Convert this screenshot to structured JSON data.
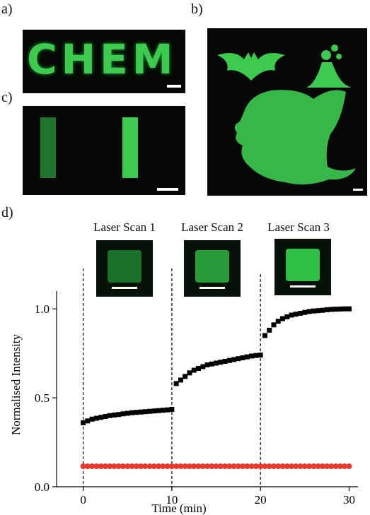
{
  "figure": {
    "panel_labels": [
      "a)",
      "b)",
      "c)",
      "d)"
    ],
    "panel_a_text": "CHEM",
    "panel_c_text": [
      "I",
      "I"
    ],
    "scan_labels": [
      "Laser Scan 1",
      "Laser Scan 2",
      "Laser Scan 3"
    ],
    "scan_intensity": [
      0.45,
      0.75,
      1.0
    ],
    "glow_color": "#3ccb4f",
    "black_series_color": "#000000",
    "red_series_color": "#e8392e"
  },
  "chart_data": {
    "type": "scatter",
    "xlabel": "Time (min)",
    "ylabel": "Normalised Intensity",
    "xlim": [
      -3,
      31
    ],
    "ylim": [
      0,
      1.1
    ],
    "xticks": [
      0,
      10,
      20,
      30
    ],
    "yticks": [
      0.0,
      0.5,
      1.0
    ],
    "ytick_labels": [
      "0.0",
      "0.5",
      "1.0"
    ],
    "vlines": [
      0,
      10,
      20
    ],
    "grid": false,
    "series": [
      {
        "color": "#000000",
        "marker": "square",
        "x": [
          0,
          0.5,
          1,
          1.5,
          2,
          2.5,
          3,
          3.5,
          4,
          4.5,
          5,
          5.5,
          6,
          6.5,
          7,
          7.5,
          8,
          8.5,
          9,
          9.5,
          10,
          10.5,
          11,
          11.5,
          12,
          12.5,
          13,
          13.5,
          14,
          14.5,
          15,
          15.5,
          16,
          16.5,
          17,
          17.5,
          18,
          18.5,
          19,
          19.5,
          20,
          20.5,
          21,
          21.5,
          22,
          22.5,
          23,
          23.5,
          24,
          24.5,
          25,
          25.5,
          26,
          26.5,
          27,
          27.5,
          28,
          28.5,
          29,
          29.5,
          30
        ],
        "y": [
          0.36,
          0.37,
          0.38,
          0.385,
          0.39,
          0.395,
          0.4,
          0.403,
          0.406,
          0.41,
          0.413,
          0.416,
          0.418,
          0.42,
          0.422,
          0.424,
          0.426,
          0.428,
          0.43,
          0.432,
          0.435,
          0.58,
          0.6,
          0.62,
          0.64,
          0.655,
          0.665,
          0.675,
          0.685,
          0.69,
          0.695,
          0.7,
          0.705,
          0.71,
          0.715,
          0.72,
          0.725,
          0.73,
          0.735,
          0.738,
          0.74,
          0.85,
          0.88,
          0.91,
          0.93,
          0.945,
          0.955,
          0.965,
          0.97,
          0.975,
          0.98,
          0.985,
          0.988,
          0.99,
          0.992,
          0.995,
          0.997,
          0.998,
          0.999,
          1.0,
          1.0
        ]
      },
      {
        "color": "#e8392e",
        "marker": "circle",
        "x": [
          0,
          0.5,
          1,
          1.5,
          2,
          2.5,
          3,
          3.5,
          4,
          4.5,
          5,
          5.5,
          6,
          6.5,
          7,
          7.5,
          8,
          8.5,
          9,
          9.5,
          10,
          10.5,
          11,
          11.5,
          12,
          12.5,
          13,
          13.5,
          14,
          14.5,
          15,
          15.5,
          16,
          16.5,
          17,
          17.5,
          18,
          18.5,
          19,
          19.5,
          20,
          20.5,
          21,
          21.5,
          22,
          22.5,
          23,
          23.5,
          24,
          24.5,
          25,
          25.5,
          26,
          26.5,
          27,
          27.5,
          28,
          28.5,
          29,
          29.5,
          30
        ],
        "y": [
          0.115,
          0.115,
          0.115,
          0.115,
          0.115,
          0.115,
          0.115,
          0.115,
          0.115,
          0.115,
          0.115,
          0.115,
          0.115,
          0.115,
          0.115,
          0.115,
          0.115,
          0.115,
          0.115,
          0.115,
          0.115,
          0.115,
          0.115,
          0.115,
          0.115,
          0.115,
          0.115,
          0.115,
          0.115,
          0.115,
          0.115,
          0.115,
          0.115,
          0.115,
          0.115,
          0.115,
          0.115,
          0.115,
          0.115,
          0.115,
          0.115,
          0.115,
          0.115,
          0.115,
          0.115,
          0.115,
          0.115,
          0.115,
          0.115,
          0.115,
          0.115,
          0.115,
          0.115,
          0.115,
          0.115,
          0.115,
          0.115,
          0.115,
          0.115,
          0.115,
          0.115
        ]
      }
    ]
  }
}
